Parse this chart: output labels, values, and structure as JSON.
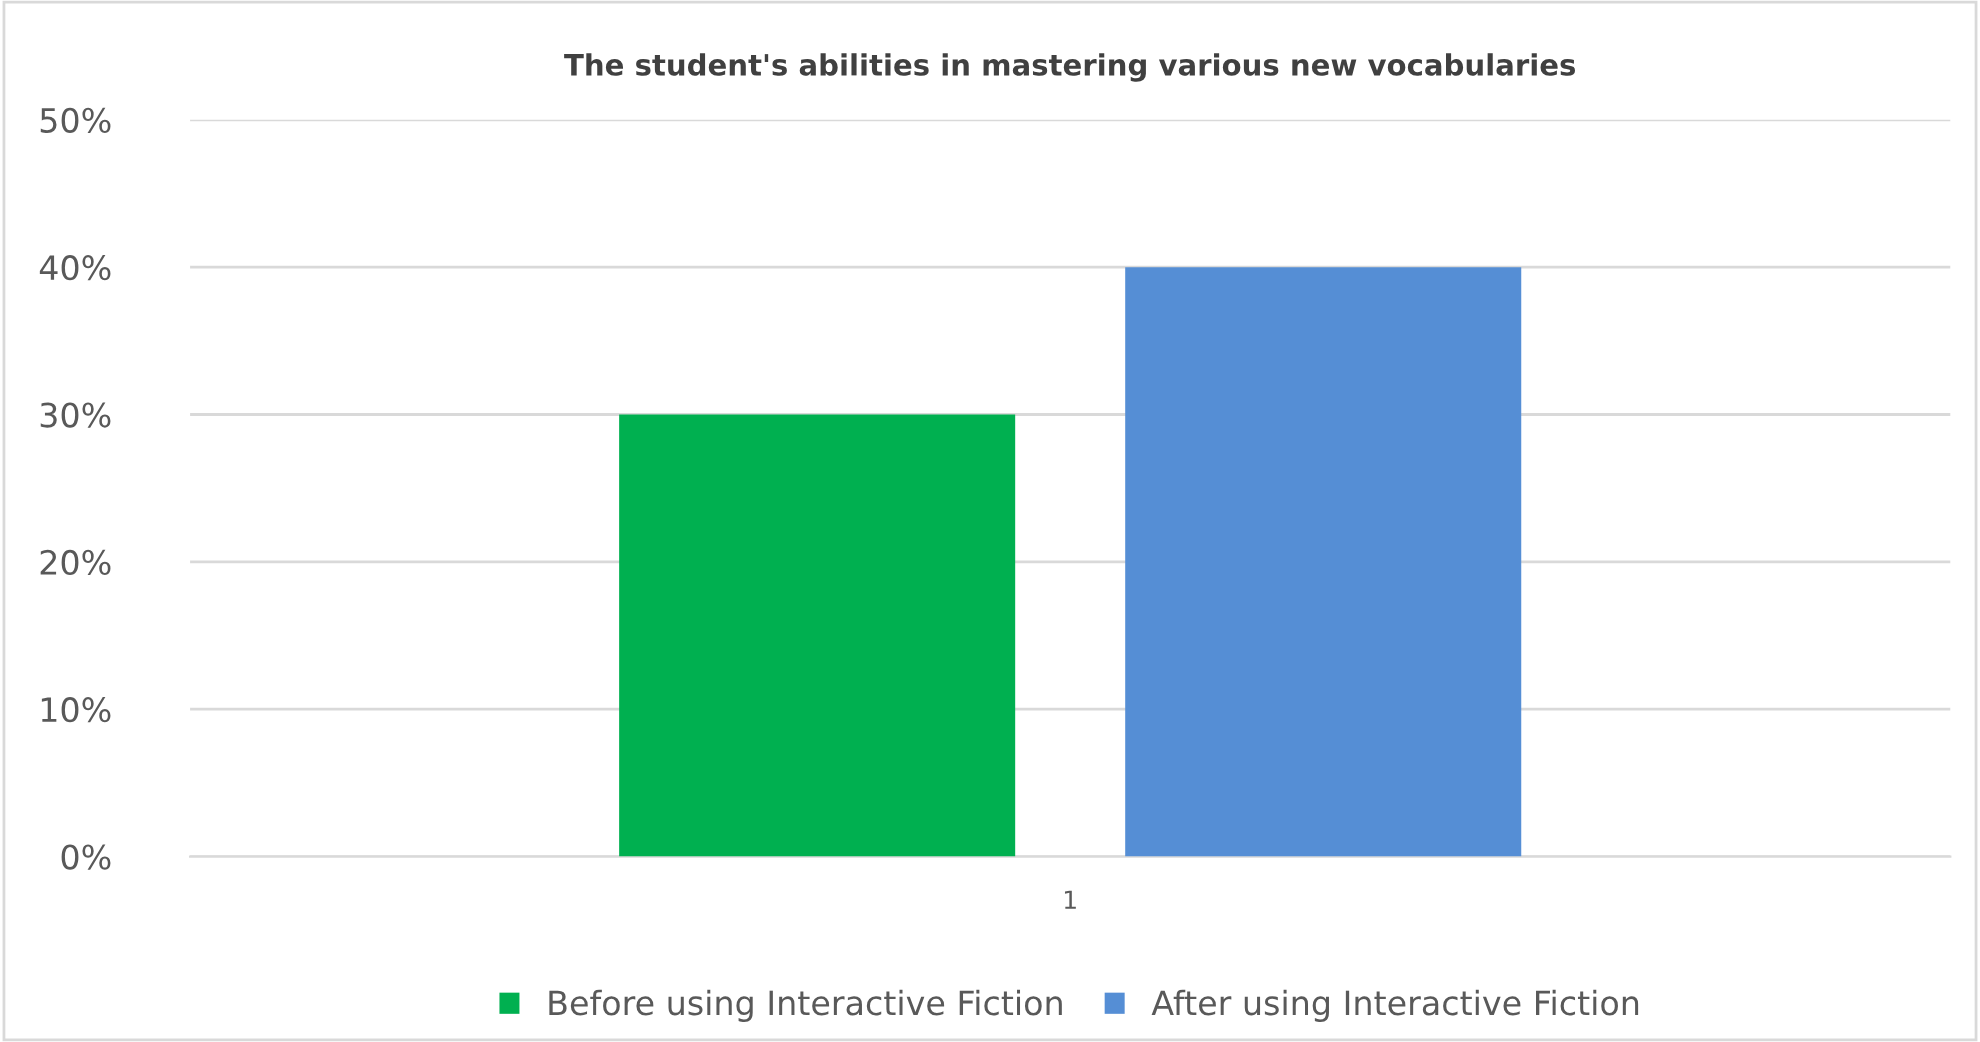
{
  "chart_data": {
    "type": "bar",
    "title": "The student's abilities in mastering various new vocabularies",
    "categories": [
      "1"
    ],
    "series": [
      {
        "name": "Before using Interactive Fiction",
        "color": "#00b050",
        "values": [
          30
        ]
      },
      {
        "name": "After using Interactive Fiction",
        "color": "#558ed5",
        "values": [
          40
        ]
      }
    ],
    "ylim": [
      0,
      50
    ],
    "yticks": [
      {
        "value": 0,
        "label": "0%"
      },
      {
        "value": 10,
        "label": "10%"
      },
      {
        "value": 20,
        "label": "20%"
      },
      {
        "value": 30,
        "label": "30%"
      },
      {
        "value": 40,
        "label": "40%"
      },
      {
        "value": 50,
        "label": "50%"
      }
    ],
    "grid": "y",
    "legend": "bottom"
  }
}
